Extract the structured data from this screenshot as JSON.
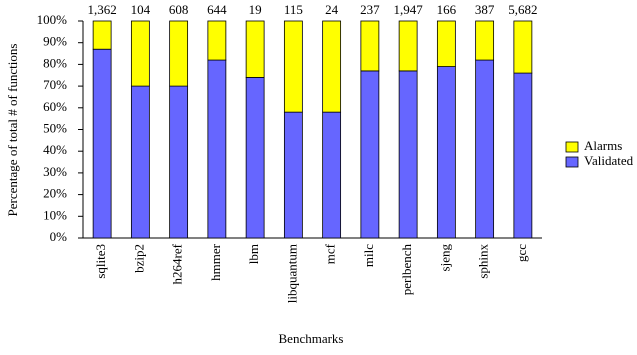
{
  "chart_data": {
    "type": "stacked-bar",
    "x_label": "Benchmarks",
    "y_label": "Percentage of total # of functions",
    "categories": [
      "sqlite3",
      "bzip2",
      "h264ref",
      "hmmer",
      "lbm",
      "libquantum",
      "mcf",
      "milc",
      "perlbench",
      "sjeng",
      "sphinx",
      "gcc"
    ],
    "series": [
      {
        "name": "Validated",
        "color": "#6666ff",
        "values": [
          87,
          70,
          70,
          82,
          74,
          58,
          58,
          77,
          77,
          79,
          82,
          76
        ]
      },
      {
        "name": "Alarms",
        "color": "#ffff00",
        "values": [
          13,
          30,
          30,
          18,
          26,
          42,
          42,
          23,
          23,
          21,
          18,
          24
        ]
      }
    ],
    "counts": [
      {
        "value": 1362,
        "label": "1,362"
      },
      104,
      608,
      644,
      19,
      115,
      24,
      237,
      {
        "value": 1947,
        "label": "1,947"
      },
      166,
      387,
      {
        "value": 5682,
        "label": "5,682"
      }
    ],
    "ylim": [
      0,
      100
    ],
    "yticks": [
      {
        "value": 0,
        "label": "0%"
      },
      {
        "value": 10,
        "label": "10%"
      },
      {
        "value": 20,
        "label": "20%"
      },
      {
        "value": 30,
        "label": "30%"
      },
      {
        "value": 40,
        "label": "40%"
      },
      {
        "value": 50,
        "label": "50%"
      },
      {
        "value": 60,
        "label": "60%"
      },
      {
        "value": 70,
        "label": "70%"
      },
      {
        "value": 80,
        "label": "80%"
      },
      {
        "value": 90,
        "label": "90%"
      },
      {
        "value": 100,
        "label": "100%"
      }
    ],
    "legend": "right"
  }
}
